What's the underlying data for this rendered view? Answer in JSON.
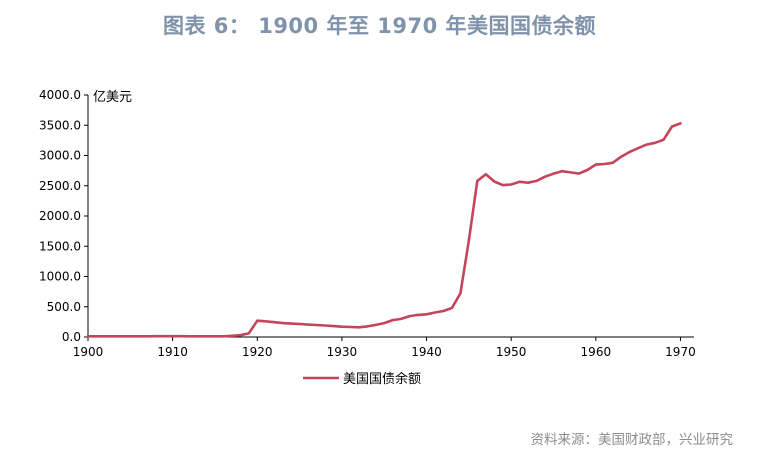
{
  "title": "图表 6：  1900 年至 1970 年美国国债余额",
  "source": "资料来源：美国财政部，兴业研究",
  "chart_data": {
    "type": "line",
    "ylabel": "亿美元",
    "xlim": [
      1900,
      1972
    ],
    "ylim": [
      0,
      4000
    ],
    "xticks": [
      1900,
      1910,
      1920,
      1930,
      1940,
      1950,
      1960,
      1970
    ],
    "yticks": [
      0,
      500,
      1000,
      1500,
      2000,
      2500,
      3000,
      3500,
      4000
    ],
    "ytick_labels": [
      "0.0",
      "500.0",
      "1000.0",
      "1500.0",
      "2000.0",
      "2500.0",
      "3000.0",
      "3500.0",
      "4000.0"
    ],
    "legend_position": "bottom-center",
    "grid": false,
    "color": "#c4455a",
    "series": [
      {
        "name": "美国国债余额",
        "x": [
          1900,
          1901,
          1902,
          1903,
          1904,
          1905,
          1906,
          1907,
          1908,
          1909,
          1910,
          1911,
          1912,
          1913,
          1914,
          1915,
          1916,
          1917,
          1918,
          1919,
          1920,
          1921,
          1922,
          1923,
          1924,
          1925,
          1926,
          1927,
          1928,
          1929,
          1930,
          1931,
          1932,
          1933,
          1934,
          1935,
          1936,
          1937,
          1938,
          1939,
          1940,
          1941,
          1942,
          1943,
          1944,
          1945,
          1946,
          1947,
          1948,
          1949,
          1950,
          1951,
          1952,
          1953,
          1954,
          1955,
          1956,
          1957,
          1958,
          1959,
          1960,
          1961,
          1962,
          1963,
          1964,
          1965,
          1966,
          1967,
          1968,
          1969,
          1970
        ],
        "values": [
          12,
          11,
          11,
          12,
          12,
          12,
          12,
          12,
          13,
          13,
          13,
          13,
          12,
          12,
          12,
          12,
          12,
          20,
          30,
          60,
          270,
          260,
          245,
          230,
          222,
          215,
          205,
          198,
          190,
          180,
          170,
          165,
          160,
          175,
          200,
          230,
          280,
          300,
          345,
          365,
          375,
          405,
          430,
          480,
          720,
          1600,
          2580,
          2690,
          2570,
          2510,
          2520,
          2565,
          2550,
          2580,
          2650,
          2700,
          2740,
          2720,
          2700,
          2760,
          2850,
          2860,
          2880,
          2980,
          3060,
          3120,
          3180,
          3210,
          3260,
          3480,
          3530
        ]
      }
    ]
  }
}
